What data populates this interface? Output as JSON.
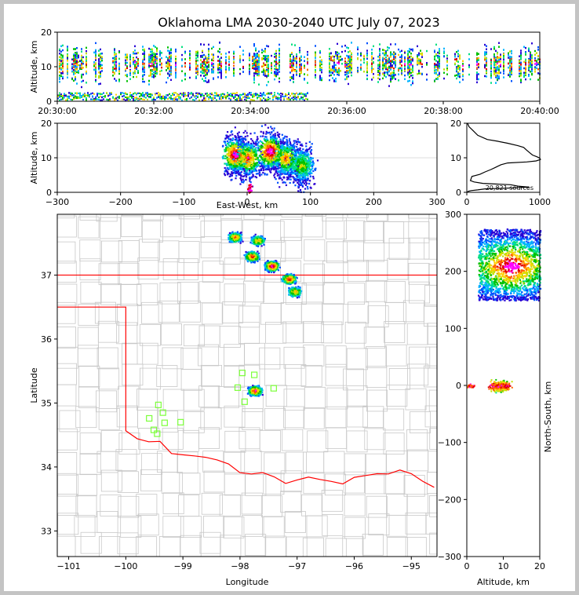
{
  "title": "Oklahoma LMA 2030-2040 UTC July 07, 2023",
  "colors": {
    "border": "#ff0000",
    "counties": "#c8c8c8",
    "stations": "#7cff3a",
    "density_scale": [
      "#2a00d4",
      "#0050ff",
      "#00b4ff",
      "#00e080",
      "#00c000",
      "#c0e000",
      "#ffd000",
      "#ff6000",
      "#e00000",
      "#ff00ff"
    ]
  },
  "chart_data": [
    {
      "type": "heatmap",
      "panel": "time-height",
      "ylabel": "Altitude, km",
      "xlabel": "",
      "ylim": [
        0,
        20
      ],
      "yticks": [
        "0",
        "10",
        "20"
      ],
      "xticks": [
        "20:30:00",
        "20:32:00",
        "20:34:00",
        "20:36:00",
        "20:38:00",
        "20:40:00"
      ],
      "xlim": [
        "20:30:00",
        "20:40:00"
      ],
      "grid": false
    },
    {
      "type": "heatmap",
      "panel": "east-west-altitude",
      "xlabel": "East-West, km",
      "ylabel": "Altitude, km",
      "xlim": [
        -300,
        300
      ],
      "ylim": [
        0,
        20
      ],
      "xticks": [
        "−300",
        "−200",
        "−100",
        "0",
        "100",
        "200",
        "300"
      ],
      "yticks": [
        "0",
        "10",
        "20"
      ],
      "grid": true
    },
    {
      "type": "line",
      "panel": "altitude-histogram",
      "annotation": "20,821 sources",
      "xlim": [
        0,
        1000
      ],
      "ylim": [
        0,
        20
      ],
      "xticks": [
        "0",
        "1000"
      ],
      "yticks": [
        "0",
        "10",
        "20"
      ],
      "x": [
        10,
        30,
        80,
        150,
        280,
        420,
        560,
        700,
        780,
        820,
        860,
        900,
        960,
        1000,
        1010,
        950,
        820,
        560,
        470,
        400,
        330,
        250,
        180,
        70,
        50,
        100,
        220,
        600,
        700,
        850,
        650,
        400,
        250,
        150,
        60,
        20,
        10
      ],
      "y": [
        20,
        19,
        18,
        16.5,
        15.3,
        14.8,
        14.2,
        13.5,
        13,
        12.2,
        11.5,
        10.8,
        10.3,
        9.9,
        9.5,
        9.1,
        8.8,
        8.5,
        8,
        7.3,
        6.6,
        5.9,
        5.2,
        4.6,
        3.4,
        3.0,
        2.6,
        2.2,
        1.8,
        1.5,
        1.3,
        1.1,
        1.0,
        0.7,
        0.5,
        0.3,
        0.1
      ]
    },
    {
      "type": "heatmap",
      "panel": "plan-view",
      "xlabel": "Longitude",
      "ylabel": "Latitude",
      "xlim": [
        -101.2,
        -94.55
      ],
      "ylim": [
        32.6,
        37.95
      ],
      "xticks": [
        "−101",
        "−100",
        "−99",
        "−98",
        "−97",
        "−96",
        "−95"
      ],
      "yticks": [
        "33",
        "34",
        "35",
        "36",
        "37"
      ],
      "stations": [
        [
          -97.96,
          35.47
        ],
        [
          -97.75,
          35.44
        ],
        [
          -98.04,
          35.24
        ],
        [
          -97.41,
          35.23
        ],
        [
          -97.92,
          35.02
        ],
        [
          -99.43,
          34.97
        ],
        [
          -99.35,
          34.85
        ],
        [
          -99.59,
          34.76
        ],
        [
          -99.32,
          34.69
        ],
        [
          -99.04,
          34.7
        ],
        [
          -99.51,
          34.58
        ],
        [
          -99.45,
          34.52
        ]
      ],
      "storms": [
        {
          "lon": -98.1,
          "lat": 37.6,
          "intensity": 3
        },
        {
          "lon": -97.7,
          "lat": 37.55,
          "intensity": 2
        },
        {
          "lon": -97.8,
          "lat": 37.3,
          "intensity": 4
        },
        {
          "lon": -97.45,
          "lat": 37.15,
          "intensity": 5
        },
        {
          "lon": -97.15,
          "lat": 36.95,
          "intensity": 4
        },
        {
          "lon": -97.05,
          "lat": 36.75,
          "intensity": 2
        },
        {
          "lon": -97.75,
          "lat": 35.2,
          "intensity": 4
        }
      ]
    },
    {
      "type": "heatmap",
      "panel": "altitude-north-south",
      "xlabel": "Altitude, km",
      "ylabel": "North-South, km",
      "xlim": [
        0,
        20
      ],
      "ylim": [
        -300,
        300
      ],
      "xticks": [
        "0",
        "10",
        "20"
      ],
      "yticks": [
        "−300",
        "−200",
        "−100",
        "0",
        "100",
        "200",
        "300"
      ]
    }
  ]
}
